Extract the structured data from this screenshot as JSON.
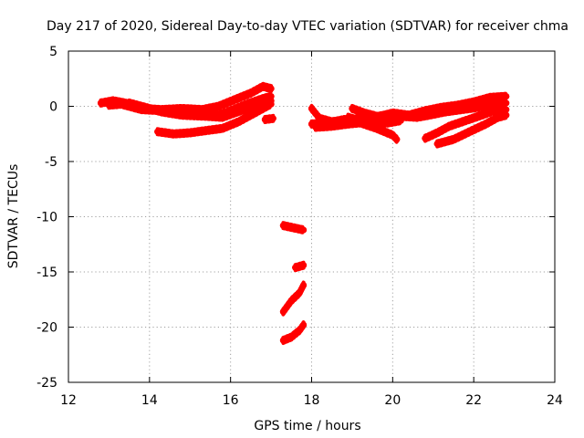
{
  "chart_data": {
    "type": "scatter",
    "title": "Day 217 of 2020, Sidereal Day-to-day VTEC variation (SDTVAR) for receiver chma",
    "xlabel": "GPS time / hours",
    "ylabel": "SDTVAR / TECUs",
    "xlim": [
      12,
      24
    ],
    "ylim": [
      -25,
      5
    ],
    "xticks": [
      "12",
      "14",
      "16",
      "18",
      "20",
      "22",
      "24"
    ],
    "yticks": [
      "5",
      "0",
      "-5",
      "-10",
      "-15",
      "-20",
      "-25"
    ],
    "grid": true,
    "marker_color": "#ff0000",
    "series": [
      {
        "name": "trace-1",
        "points": [
          [
            12.8,
            0.3
          ],
          [
            13.1,
            0.5
          ],
          [
            13.4,
            0.3
          ],
          [
            13.8,
            -0.2
          ],
          [
            14.3,
            -0.3
          ],
          [
            14.8,
            -0.2
          ],
          [
            15.3,
            -0.3
          ],
          [
            15.7,
            0.0
          ],
          [
            16.1,
            0.6
          ],
          [
            16.5,
            1.2
          ],
          [
            16.8,
            1.8
          ],
          [
            17.0,
            1.6
          ]
        ]
      },
      {
        "name": "trace-2",
        "points": [
          [
            13.0,
            0.1
          ],
          [
            13.3,
            0.2
          ],
          [
            13.8,
            -0.3
          ],
          [
            14.3,
            -0.4
          ],
          [
            14.8,
            -0.7
          ],
          [
            15.3,
            -0.6
          ],
          [
            15.7,
            -0.8
          ],
          [
            16.0,
            -0.4
          ],
          [
            16.4,
            0.2
          ],
          [
            16.8,
            0.7
          ],
          [
            17.0,
            0.9
          ]
        ]
      },
      {
        "name": "trace-3",
        "points": [
          [
            13.5,
            0.3
          ],
          [
            13.9,
            -0.1
          ],
          [
            14.3,
            -0.5
          ],
          [
            14.8,
            -0.8
          ],
          [
            15.4,
            -0.9
          ],
          [
            15.8,
            -1.0
          ],
          [
            16.1,
            -0.6
          ],
          [
            16.5,
            -0.1
          ],
          [
            16.9,
            0.3
          ],
          [
            17.0,
            0.5
          ]
        ]
      },
      {
        "name": "trace-4",
        "points": [
          [
            14.2,
            -2.3
          ],
          [
            14.6,
            -2.5
          ],
          [
            15.0,
            -2.4
          ],
          [
            15.4,
            -2.2
          ],
          [
            15.8,
            -2.0
          ],
          [
            16.2,
            -1.4
          ],
          [
            16.6,
            -0.6
          ],
          [
            16.9,
            0.0
          ],
          [
            17.0,
            0.2
          ]
        ]
      },
      {
        "name": "trace-5",
        "points": [
          [
            16.85,
            -1.2
          ],
          [
            17.05,
            -1.1
          ]
        ]
      },
      {
        "name": "trace-6",
        "points": [
          [
            17.3,
            -10.8
          ],
          [
            17.55,
            -11.0
          ],
          [
            17.8,
            -11.2
          ]
        ]
      },
      {
        "name": "trace-7",
        "points": [
          [
            17.6,
            -14.6
          ],
          [
            17.8,
            -14.4
          ]
        ]
      },
      {
        "name": "trace-8",
        "points": [
          [
            17.3,
            -18.6
          ],
          [
            17.5,
            -17.6
          ],
          [
            17.7,
            -16.9
          ],
          [
            17.8,
            -16.2
          ]
        ]
      },
      {
        "name": "trace-9",
        "points": [
          [
            17.3,
            -21.2
          ],
          [
            17.5,
            -20.9
          ],
          [
            17.7,
            -20.3
          ],
          [
            17.8,
            -19.8
          ]
        ]
      },
      {
        "name": "trace-10",
        "points": [
          [
            18.0,
            -0.2
          ],
          [
            18.2,
            -1.1
          ],
          [
            18.5,
            -1.4
          ],
          [
            18.9,
            -1.3
          ],
          [
            19.3,
            -1.0
          ],
          [
            19.7,
            -0.9
          ],
          [
            20.0,
            -0.6
          ],
          [
            20.4,
            -0.8
          ],
          [
            20.8,
            -0.4
          ],
          [
            21.2,
            -0.1
          ],
          [
            21.6,
            0.1
          ],
          [
            22.0,
            0.4
          ],
          [
            22.4,
            0.8
          ],
          [
            22.8,
            0.9
          ]
        ]
      },
      {
        "name": "trace-11",
        "points": [
          [
            18.0,
            -1.6
          ],
          [
            18.4,
            -1.5
          ],
          [
            18.8,
            -1.2
          ],
          [
            19.2,
            -1.3
          ],
          [
            19.5,
            -1.0
          ],
          [
            19.8,
            -0.8
          ],
          [
            20.2,
            -0.9
          ],
          [
            20.6,
            -1.0
          ],
          [
            20.9,
            -0.8
          ],
          [
            21.3,
            -0.5
          ],
          [
            21.7,
            -0.3
          ],
          [
            22.1,
            -0.1
          ],
          [
            22.5,
            0.2
          ],
          [
            22.8,
            0.3
          ]
        ]
      },
      {
        "name": "trace-12",
        "points": [
          [
            18.1,
            -1.9
          ],
          [
            18.5,
            -1.8
          ],
          [
            18.9,
            -1.6
          ],
          [
            19.2,
            -1.5
          ],
          [
            19.6,
            -2.0
          ],
          [
            20.0,
            -2.6
          ],
          [
            20.1,
            -3.0
          ]
        ]
      },
      {
        "name": "trace-13",
        "points": [
          [
            18.9,
            -1.0
          ],
          [
            19.2,
            -1.3
          ],
          [
            19.6,
            -1.6
          ],
          [
            19.9,
            -1.5
          ],
          [
            20.2,
            -1.3
          ]
        ]
      },
      {
        "name": "trace-14",
        "points": [
          [
            19.0,
            -0.2
          ],
          [
            19.3,
            -0.6
          ],
          [
            19.6,
            -0.9
          ]
        ]
      },
      {
        "name": "trace-15",
        "points": [
          [
            20.8,
            -2.9
          ],
          [
            21.1,
            -2.4
          ],
          [
            21.4,
            -1.8
          ],
          [
            21.8,
            -1.3
          ],
          [
            22.2,
            -0.8
          ],
          [
            22.5,
            -0.4
          ],
          [
            22.8,
            -0.3
          ]
        ]
      },
      {
        "name": "trace-16",
        "points": [
          [
            21.1,
            -3.4
          ],
          [
            21.5,
            -3.0
          ],
          [
            21.9,
            -2.3
          ],
          [
            22.3,
            -1.6
          ],
          [
            22.6,
            -1.0
          ],
          [
            22.8,
            -0.8
          ]
        ]
      }
    ]
  }
}
